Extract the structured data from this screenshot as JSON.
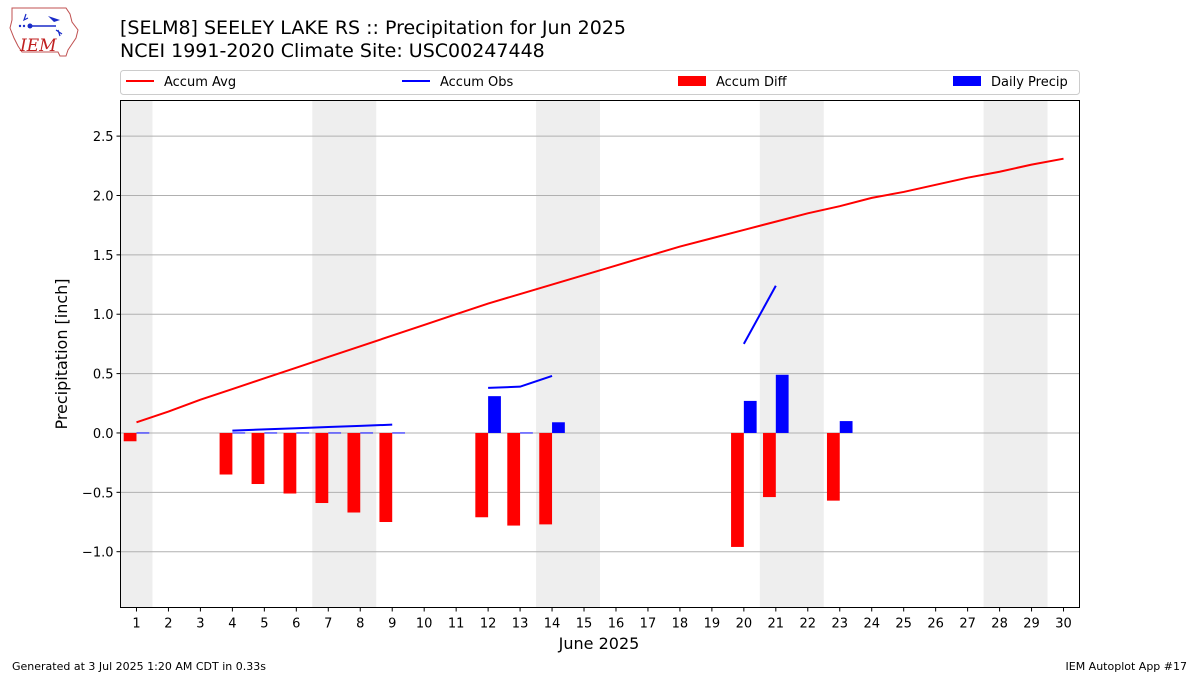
{
  "header": {
    "title": "[SELM8] SEELEY LAKE RS :: Precipitation for Jun 2025",
    "subtitle": "NCEI 1991-2020 Climate Site: USC00247448",
    "logo_text": "IEM"
  },
  "footer": {
    "left": "Generated at 3 Jul 2025 1:20 AM CDT in 0.33s",
    "right": "IEM Autoplot App #17"
  },
  "chart_data": {
    "type": "bar",
    "xlabel": "June 2025",
    "ylabel": "Precipitation [inch]",
    "xlim": [
      0.5,
      30.5
    ],
    "ylim": [
      -1.47,
      2.8
    ],
    "yticks": [
      -1.0,
      -0.5,
      0.0,
      0.5,
      1.0,
      1.5,
      2.0,
      2.5
    ],
    "ytick_labels": [
      "−1.0",
      "−0.5",
      "0.0",
      "0.5",
      "1.0",
      "1.5",
      "2.0",
      "2.5"
    ],
    "x": [
      1,
      2,
      3,
      4,
      5,
      6,
      7,
      8,
      9,
      10,
      11,
      12,
      13,
      14,
      15,
      16,
      17,
      18,
      19,
      20,
      21,
      22,
      23,
      24,
      25,
      26,
      27,
      28,
      29,
      30
    ],
    "xtick_labels": [
      "1",
      "2",
      "3",
      "4",
      "5",
      "6",
      "7",
      "8",
      "9",
      "10",
      "11",
      "12",
      "13",
      "14",
      "15",
      "16",
      "17",
      "18",
      "19",
      "20",
      "21",
      "22",
      "23",
      "24",
      "25",
      "26",
      "27",
      "28",
      "29",
      "30"
    ],
    "grid": "y",
    "legend_position": "top",
    "weekend_shading": [
      [
        0.5,
        1.5
      ],
      [
        6.5,
        8.5
      ],
      [
        13.5,
        15.5
      ],
      [
        20.5,
        22.5
      ],
      [
        27.5,
        29.5
      ]
    ],
    "series": [
      {
        "name": "Accum Avg",
        "kind": "line",
        "color": "#ff0000",
        "x": [
          1,
          2,
          3,
          4,
          5,
          6,
          7,
          8,
          9,
          10,
          11,
          12,
          13,
          14,
          15,
          16,
          17,
          18,
          19,
          20,
          21,
          22,
          23,
          24,
          25,
          26,
          27,
          28,
          29,
          30
        ],
        "values": [
          0.09,
          0.18,
          0.28,
          0.37,
          0.46,
          0.55,
          0.64,
          0.73,
          0.82,
          0.91,
          1.0,
          1.09,
          1.17,
          1.25,
          1.33,
          1.41,
          1.49,
          1.57,
          1.64,
          1.71,
          1.78,
          1.85,
          1.91,
          1.98,
          2.03,
          2.09,
          2.15,
          2.2,
          2.26,
          2.31
        ]
      },
      {
        "name": "Accum Obs",
        "kind": "line",
        "color": "#0000ff",
        "segments": [
          {
            "x": [
              4,
              5,
              6,
              7,
              8,
              9
            ],
            "values": [
              0.02,
              0.03,
              0.04,
              0.05,
              0.06,
              0.07
            ]
          },
          {
            "x": [
              12,
              13,
              14
            ],
            "values": [
              0.38,
              0.39,
              0.48
            ]
          },
          {
            "x": [
              20,
              21
            ],
            "values": [
              0.75,
              1.24
            ]
          }
        ]
      },
      {
        "name": "Accum Diff",
        "kind": "bar",
        "color": "#ff0000",
        "x": [
          1,
          4,
          5,
          6,
          7,
          8,
          9,
          12,
          13,
          14,
          20,
          21,
          23
        ],
        "values": [
          -0.07,
          -0.35,
          -0.43,
          -0.51,
          -0.59,
          -0.67,
          -0.75,
          -0.71,
          -0.78,
          -0.77,
          -0.96,
          -0.54,
          -0.57
        ]
      },
      {
        "name": "Daily Precip",
        "kind": "bar",
        "color": "#0000ff",
        "x": [
          1,
          4,
          5,
          6,
          7,
          8,
          9,
          12,
          13,
          14,
          20,
          21,
          23
        ],
        "values": [
          0.005,
          0.005,
          0.005,
          0.005,
          0.005,
          0.005,
          0.005,
          0.31,
          0.005,
          0.09,
          0.27,
          0.49,
          0.1
        ]
      }
    ]
  }
}
